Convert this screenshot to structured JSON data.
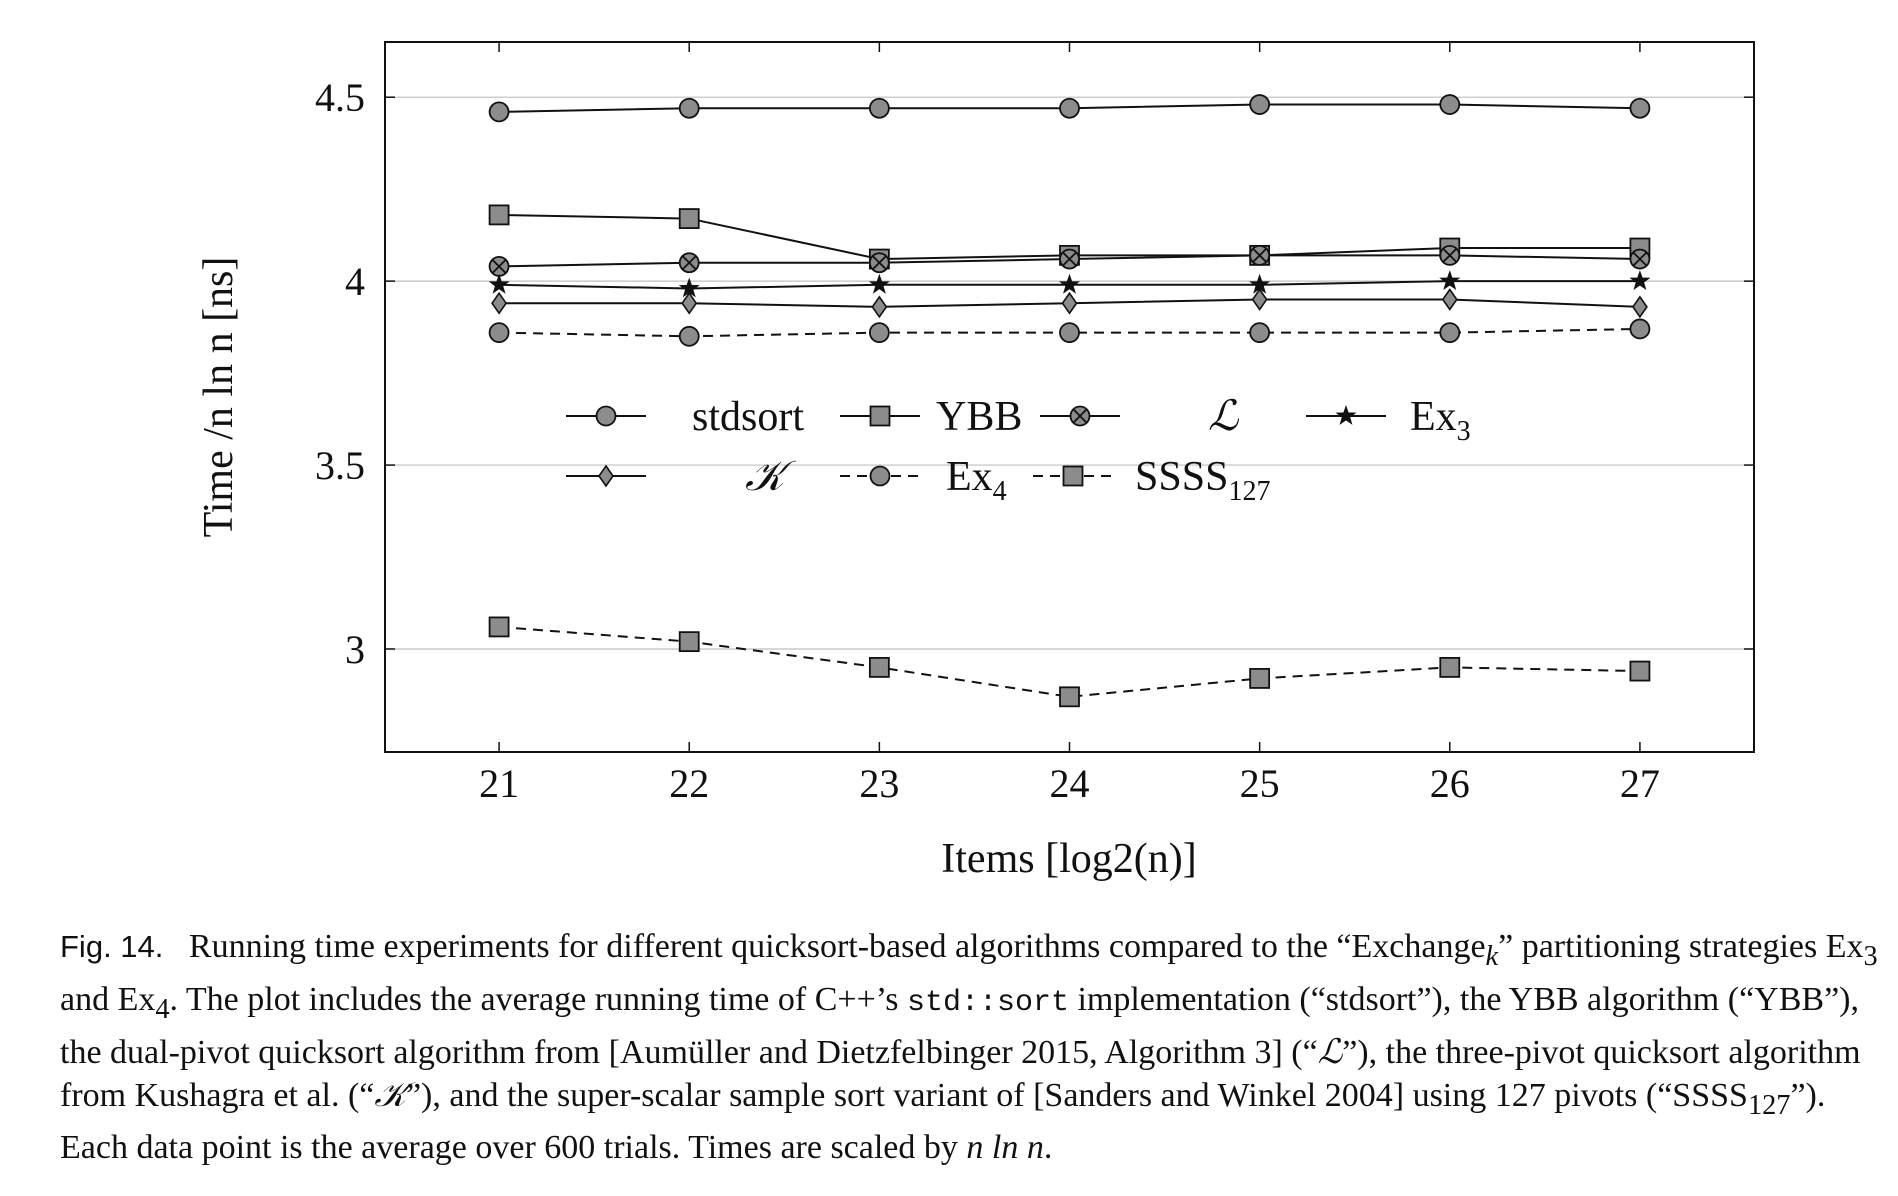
{
  "chart_data": {
    "type": "line",
    "xlabel": "Items [log2(n)]",
    "ylabel": "Time /n ln n [ns]",
    "x": [
      21,
      22,
      23,
      24,
      25,
      26,
      27
    ],
    "xlim": [
      20.4,
      27.6
    ],
    "ylim": [
      2.72,
      4.65
    ],
    "x_ticks": [
      "21",
      "22",
      "23",
      "24",
      "25",
      "26",
      "27"
    ],
    "y_ticks": [
      {
        "value": 3,
        "label": "3"
      },
      {
        "value": 3.5,
        "label": "3.5"
      },
      {
        "value": 4,
        "label": "4"
      },
      {
        "value": 4.5,
        "label": "4.5"
      }
    ],
    "grid": "horizontal",
    "legend_placement": "center",
    "series": [
      {
        "name": "stdsort",
        "values": [
          4.46,
          4.47,
          4.47,
          4.47,
          4.48,
          4.48,
          4.47
        ],
        "marker": "circle",
        "dash": "solid"
      },
      {
        "name": "YBB",
        "values": [
          4.18,
          4.17,
          4.06,
          4.07,
          4.07,
          4.09,
          4.09
        ],
        "marker": "square",
        "dash": "solid"
      },
      {
        "name": "ℒ",
        "values": [
          4.04,
          4.05,
          4.05,
          4.06,
          4.07,
          4.07,
          4.06
        ],
        "marker": "otimes",
        "dash": "solid"
      },
      {
        "name": "Ex3",
        "values": [
          3.99,
          3.98,
          3.99,
          3.99,
          3.99,
          4.0,
          4.0
        ],
        "marker": "star",
        "dash": "solid"
      },
      {
        "name": "𝒦",
        "values": [
          3.94,
          3.94,
          3.93,
          3.94,
          3.95,
          3.95,
          3.93
        ],
        "marker": "diamond",
        "dash": "solid"
      },
      {
        "name": "Ex4",
        "values": [
          3.86,
          3.85,
          3.86,
          3.86,
          3.86,
          3.86,
          3.87
        ],
        "marker": "circle",
        "dash": "dashed"
      },
      {
        "name": "SSSS127",
        "values": [
          3.06,
          3.02,
          2.95,
          2.87,
          2.92,
          2.95,
          2.94
        ],
        "marker": "square",
        "dash": "dashed"
      }
    ],
    "colors": {
      "line": "#111111",
      "marker_fill": "#8c8c8c",
      "grid": "#bfbfbf"
    }
  },
  "caption": {
    "label": "Fig. 14.",
    "p1": "Running time experiments for different quicksort-based algorithms compared to the “Exchange",
    "p1_sub": "k",
    "p2": "” partitioning strategies Ex",
    "p2_sub": "3",
    "p3": " and Ex",
    "p3_sub": "4",
    "p4": ". The plot includes the average running time of C++’s ",
    "code": "std::sort",
    "p5": " implementation (“stdsort”), the YBB algorithm (“YBB”), the dual-pivot quicksort algorithm from [Aumüller and Dietzfelbinger 2015, Algorithm 3] (“",
    "sym_L": "ℒ",
    "p6": "”), the three-pivot quicksort algorithm from Kushagra et al. (“",
    "sym_K": "𝒦",
    "p7": "”), and the super-scalar sample sort variant of [Sanders and Winkel 2004] using 127 pivots (“SSSS",
    "p7_sub": "127",
    "p8": "”). Each data point is the average over 600 trials. Times are scaled by ",
    "p8_math": "n ln n",
    "p9": "."
  }
}
